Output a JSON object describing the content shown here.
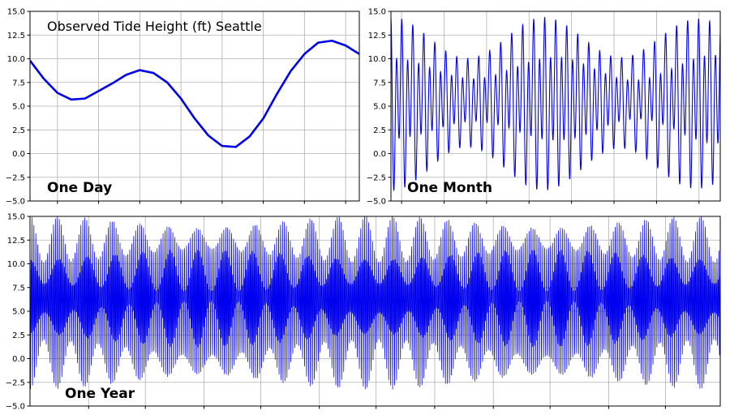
{
  "figure_title": "Observed Tide Height (ft) Seattle",
  "chart_data": [
    {
      "id": "day",
      "type": "line",
      "label": "One Day",
      "title": "Observed Tide Height (ft) Seattle",
      "color": "#0000ee",
      "xlim": [
        0,
        24
      ],
      "ylim": [
        -5.0,
        15.0
      ],
      "yticks": [
        -5.0,
        -2.5,
        0.0,
        2.5,
        5.0,
        7.5,
        10.0,
        12.5,
        15.0
      ],
      "ytick_labels": [
        "−5.0",
        "−2.5",
        "0.0",
        "2.5",
        "5.0",
        "7.5",
        "10.0",
        "12.5",
        "15.0"
      ],
      "xticks": [
        2,
        5,
        8,
        11,
        14,
        17,
        20,
        23
      ],
      "x": [
        0,
        1,
        2,
        3,
        4,
        5,
        6,
        7,
        8,
        9,
        10,
        11,
        12,
        13,
        14,
        15,
        16,
        17,
        18,
        19,
        20,
        21,
        22,
        23,
        24
      ],
      "y": [
        9.8,
        7.9,
        6.4,
        5.7,
        5.8,
        6.6,
        7.4,
        8.3,
        8.8,
        8.5,
        7.5,
        5.8,
        3.7,
        1.9,
        0.8,
        0.7,
        1.8,
        3.7,
        6.3,
        8.7,
        10.5,
        11.7,
        11.9,
        11.4,
        10.5
      ]
    },
    {
      "id": "month",
      "type": "line",
      "label": "One Month",
      "color": "#0000ee",
      "xlim": [
        0,
        31
      ],
      "ylim": [
        -5.0,
        15.0
      ],
      "yticks": [
        -5.0,
        -2.5,
        0.0,
        2.5,
        5.0,
        7.5,
        10.0,
        12.5,
        15.0
      ],
      "ytick_labels": [
        "−5.0",
        "−2.5",
        "0.0",
        "2.5",
        "5.0",
        "7.5",
        "10.0",
        "12.5",
        "15.0"
      ],
      "xticks": [
        1,
        5,
        9,
        13,
        17,
        21,
        25,
        29
      ],
      "model": {
        "mean": 5.5,
        "semidiurnal_amp": 5.0,
        "diurnal_amp": 2.6,
        "spring_neap_mod": 0.32,
        "period_days": 0.5175,
        "diurnal_period_days": 1.035
      }
    },
    {
      "id": "year",
      "type": "line",
      "label": "One Year",
      "color": "#0000ee",
      "xlim": [
        0,
        365
      ],
      "ylim": [
        -5.0,
        15.0
      ],
      "yticks": [
        -5.0,
        -2.5,
        0.0,
        2.5,
        5.0,
        7.5,
        10.0,
        12.5,
        15.0
      ],
      "ytick_labels": [
        "−5.0",
        "−2.5",
        "0.0",
        "2.5",
        "5.0",
        "7.5",
        "10.0",
        "12.5",
        "15.0"
      ],
      "xticks": [
        31,
        61,
        92,
        122,
        153,
        183,
        214,
        245,
        275,
        306,
        336
      ],
      "model": {
        "mean": 6.2,
        "semidiurnal_amp": 4.6,
        "diurnal_amp": 2.8,
        "spring_neap_mod": 0.4,
        "period_days": 0.5175,
        "diurnal_period_days": 1.035
      }
    }
  ]
}
